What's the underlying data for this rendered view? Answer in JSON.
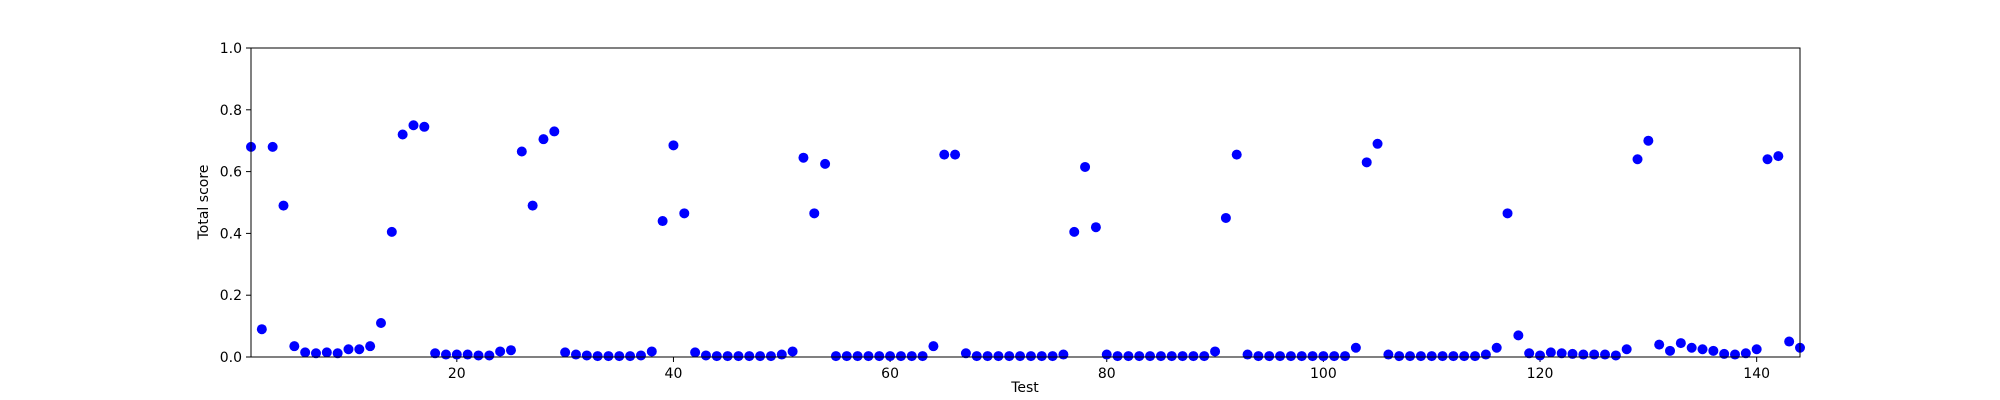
{
  "chart_data": {
    "type": "scatter",
    "x_label": "Test",
    "y_label": "Total score",
    "x": [
      1,
      2,
      3,
      4,
      5,
      6,
      7,
      8,
      9,
      10,
      11,
      12,
      13,
      14,
      15,
      16,
      17,
      18,
      19,
      20,
      21,
      22,
      23,
      24,
      25,
      26,
      27,
      28,
      29,
      30,
      31,
      32,
      33,
      34,
      35,
      36,
      37,
      38,
      39,
      40,
      41,
      42,
      43,
      44,
      45,
      46,
      47,
      48,
      49,
      50,
      51,
      52,
      53,
      54,
      55,
      56,
      57,
      58,
      59,
      60,
      61,
      62,
      63,
      64,
      65,
      66,
      67,
      68,
      69,
      70,
      71,
      72,
      73,
      74,
      75,
      76,
      77,
      78,
      79,
      80,
      81,
      82,
      83,
      84,
      85,
      86,
      87,
      88,
      89,
      90,
      91,
      92,
      93,
      94,
      95,
      96,
      97,
      98,
      99,
      100,
      101,
      102,
      103,
      104,
      105,
      106,
      107,
      108,
      109,
      110,
      111,
      112,
      113,
      114,
      115,
      116,
      117,
      118,
      119,
      120,
      121,
      122,
      123,
      124,
      125,
      126,
      127,
      128,
      129,
      130,
      131,
      132,
      133,
      134,
      135,
      136,
      137,
      138,
      139,
      140,
      141,
      142,
      143,
      144
    ],
    "values": [
      0.68,
      0.09,
      0.68,
      0.49,
      0.035,
      0.015,
      0.012,
      0.015,
      0.012,
      0.025,
      0.025,
      0.035,
      0.11,
      0.405,
      0.72,
      0.75,
      0.745,
      0.012,
      0.008,
      0.008,
      0.008,
      0.005,
      0.005,
      0.018,
      0.022,
      0.665,
      0.49,
      0.705,
      0.73,
      0.015,
      0.008,
      0.005,
      0.003,
      0.003,
      0.003,
      0.003,
      0.005,
      0.018,
      0.44,
      0.685,
      0.465,
      0.015,
      0.005,
      0.003,
      0.003,
      0.003,
      0.003,
      0.003,
      0.003,
      0.008,
      0.018,
      0.645,
      0.465,
      0.625,
      0.003,
      0.003,
      0.003,
      0.003,
      0.003,
      0.003,
      0.003,
      0.003,
      0.003,
      0.035,
      0.655,
      0.655,
      0.012,
      0.003,
      0.003,
      0.003,
      0.003,
      0.003,
      0.003,
      0.003,
      0.003,
      0.008,
      0.405,
      0.615,
      0.42,
      0.008,
      0.003,
      0.003,
      0.003,
      0.003,
      0.003,
      0.003,
      0.003,
      0.003,
      0.003,
      0.018,
      0.45,
      0.655,
      0.008,
      0.003,
      0.003,
      0.003,
      0.003,
      0.003,
      0.003,
      0.003,
      0.003,
      0.003,
      0.03,
      0.63,
      0.69,
      0.008,
      0.003,
      0.003,
      0.003,
      0.003,
      0.003,
      0.003,
      0.003,
      0.003,
      0.008,
      0.03,
      0.465,
      0.07,
      0.012,
      0.005,
      0.015,
      0.012,
      0.01,
      0.008,
      0.008,
      0.008,
      0.005,
      0.025,
      0.64,
      0.7,
      0.04,
      0.02,
      0.045,
      0.03,
      0.025,
      0.02,
      0.01,
      0.008,
      0.012,
      0.025,
      0.64,
      0.65,
      0.05,
      0.03
    ],
    "color": "#0000ff",
    "xlim": [
      1,
      144
    ],
    "xticks": [
      20,
      40,
      60,
      80,
      100,
      120,
      140
    ],
    "ylim": [
      0,
      1
    ],
    "yticks": [
      {
        "value": 0,
        "label": "0.0"
      },
      0.2,
      0.4,
      0.6,
      0.8,
      {
        "value": 1,
        "label": "1.0"
      }
    ],
    "grid": false
  }
}
